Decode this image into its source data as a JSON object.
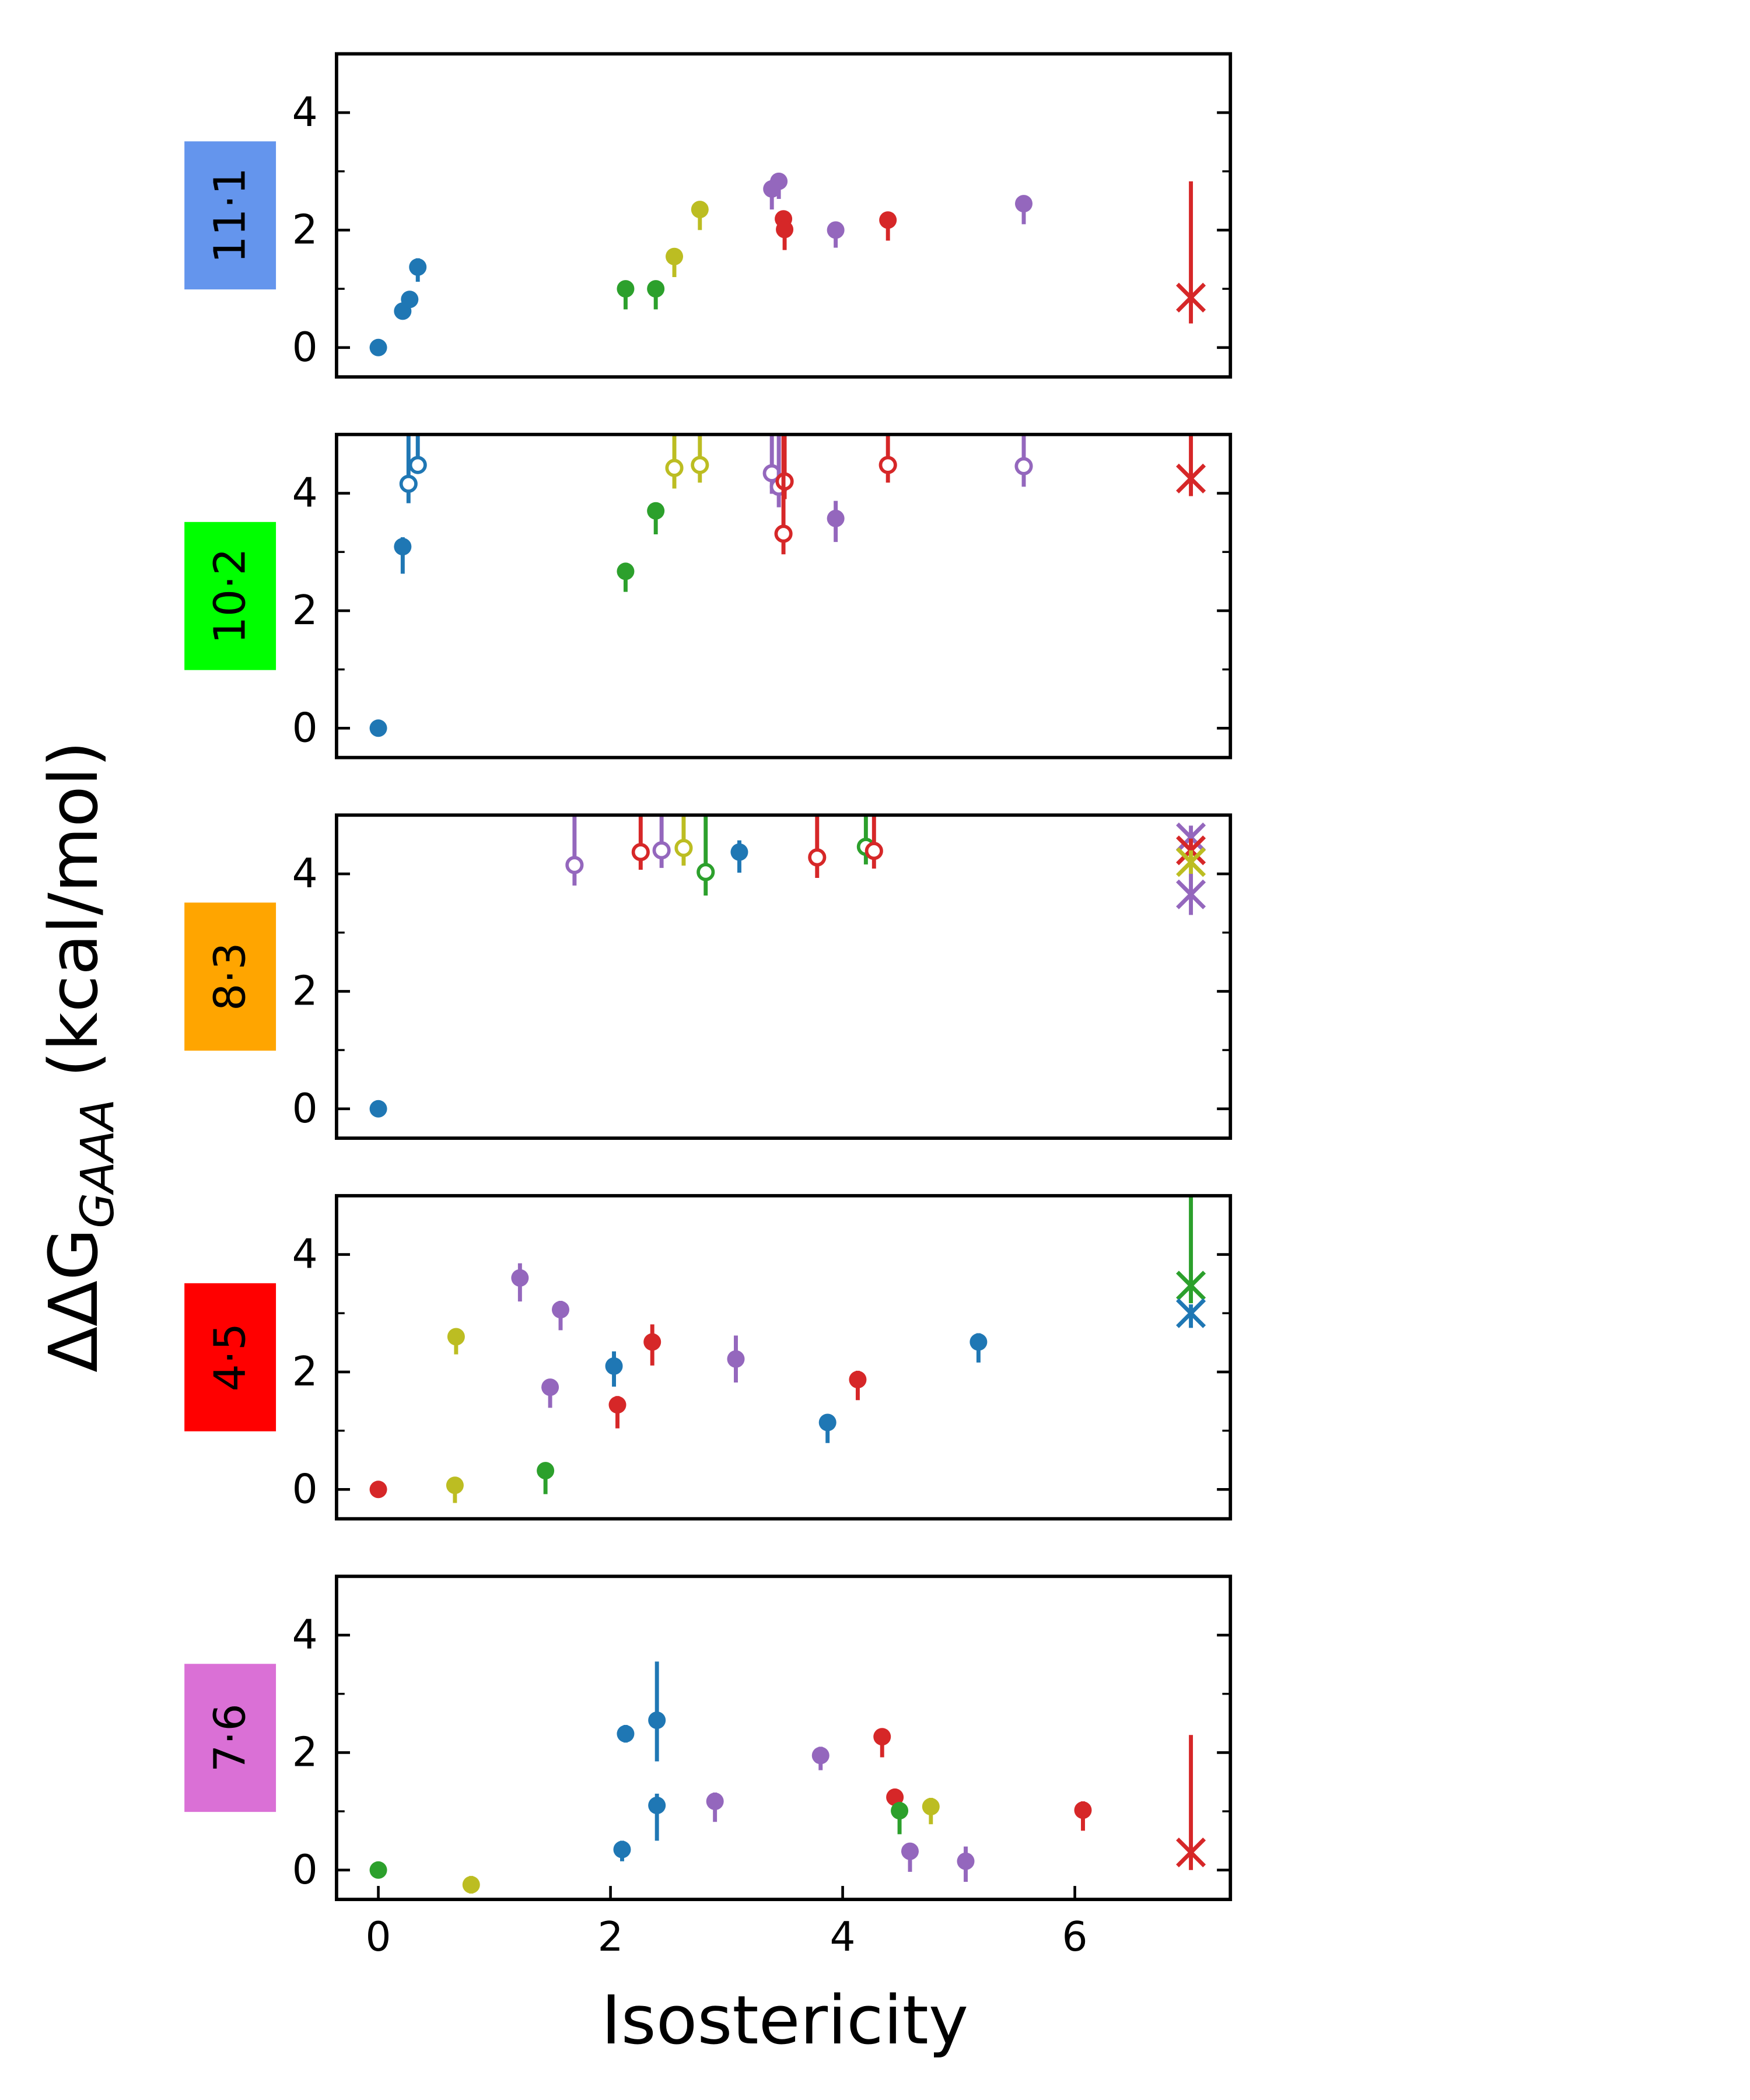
{
  "figure": {
    "xlabel": "Isostericity",
    "ylabel": "ΔΔG",
    "ylabel_subscript": "GAAA",
    "ylabel_unit": " (kcal/mol)"
  },
  "chart_data": [
    {
      "type": "scatter",
      "panel_label": "11·1",
      "panel_color": "#6495ed",
      "xlim": [
        -0.36,
        7.34
      ],
      "ylim": [
        -0.5,
        5
      ],
      "yticks": [
        0,
        2,
        4
      ],
      "yminor": [
        1,
        3
      ],
      "points": [
        {
          "x": 0,
          "y": 0,
          "err": [
            0.05,
            0.05
          ],
          "color": "#1f77b4",
          "marker": "o"
        },
        {
          "x": 0.21,
          "y": 0.62,
          "err": [
            0.1,
            0.1
          ],
          "color": "#1f77b4",
          "marker": "o"
        },
        {
          "x": 0.27,
          "y": 0.82,
          "err": [
            0.1,
            0.1
          ],
          "color": "#1f77b4",
          "marker": "o"
        },
        {
          "x": 0.34,
          "y": 1.37,
          "err": [
            0.25,
            0.15
          ],
          "color": "#1f77b4",
          "marker": "o"
        },
        {
          "x": 2.13,
          "y": 1.0,
          "err": [
            0.35,
            0.1
          ],
          "color": "#2ca02c",
          "marker": "o"
        },
        {
          "x": 2.39,
          "y": 1.0,
          "err": [
            0.35,
            0.1
          ],
          "color": "#2ca02c",
          "marker": "o"
        },
        {
          "x": 2.55,
          "y": 1.55,
          "err": [
            0.35,
            0.1
          ],
          "color": "#bcbd22",
          "marker": "o"
        },
        {
          "x": 2.77,
          "y": 2.35,
          "err": [
            0.35,
            0.1
          ],
          "color": "#bcbd22",
          "marker": "o"
        },
        {
          "x": 3.39,
          "y": 2.7,
          "err": [
            0.35,
            0.15
          ],
          "color": "#9467bd",
          "marker": "o"
        },
        {
          "x": 3.45,
          "y": 2.83,
          "err": [
            0.3,
            0.1
          ],
          "color": "#9467bd",
          "marker": "o"
        },
        {
          "x": 3.49,
          "y": 2.19,
          "err": [
            0.3,
            0.1
          ],
          "color": "#d62728",
          "marker": "o"
        },
        {
          "x": 3.5,
          "y": 2.01,
          "err": [
            0.35,
            0.1
          ],
          "color": "#d62728",
          "marker": "o"
        },
        {
          "x": 3.94,
          "y": 2.0,
          "err": [
            0.3,
            0.1
          ],
          "color": "#9467bd",
          "marker": "o"
        },
        {
          "x": 4.39,
          "y": 2.17,
          "err": [
            0.35,
            0.1
          ],
          "color": "#d62728",
          "marker": "o"
        },
        {
          "x": 5.56,
          "y": 2.45,
          "err": [
            0.35,
            0.1
          ],
          "color": "#9467bd",
          "marker": "o"
        },
        {
          "x": 7.0,
          "y": 0.85,
          "err": [
            0.44,
            1.98
          ],
          "color": "#d62728",
          "marker": "x"
        }
      ]
    },
    {
      "type": "scatter",
      "panel_label": "10·2",
      "panel_color": "#00ff00",
      "xlim": [
        -0.36,
        7.34
      ],
      "ylim": [
        -0.5,
        5
      ],
      "yticks": [
        0,
        2,
        4
      ],
      "yminor": [
        1,
        3
      ],
      "points": [
        {
          "x": 0,
          "y": 0,
          "err": [
            0.05,
            0.05
          ],
          "color": "#1f77b4",
          "marker": "o"
        },
        {
          "x": 0.21,
          "y": 3.09,
          "err": [
            0.46,
            0.16
          ],
          "color": "#1f77b4",
          "marker": "o"
        },
        {
          "x": 0.26,
          "y": 4.16,
          "err": [
            0.33,
            1
          ],
          "color": "#1f77b4",
          "marker": "open"
        },
        {
          "x": 0.34,
          "y": 4.48,
          "err": [
            0.1,
            1
          ],
          "color": "#1f77b4",
          "marker": "open"
        },
        {
          "x": 2.13,
          "y": 2.67,
          "err": [
            0.35,
            0.1
          ],
          "color": "#2ca02c",
          "marker": "o"
        },
        {
          "x": 2.39,
          "y": 3.7,
          "err": [
            0.4,
            0.1
          ],
          "color": "#2ca02c",
          "marker": "o"
        },
        {
          "x": 2.55,
          "y": 4.43,
          "err": [
            0.35,
            1
          ],
          "color": "#bcbd22",
          "marker": "open"
        },
        {
          "x": 2.77,
          "y": 4.48,
          "err": [
            0.3,
            1
          ],
          "color": "#bcbd22",
          "marker": "open"
        },
        {
          "x": 3.39,
          "y": 4.34,
          "err": [
            0.35,
            1
          ],
          "color": "#9467bd",
          "marker": "open"
        },
        {
          "x": 3.45,
          "y": 4.11,
          "err": [
            0.35,
            1
          ],
          "color": "#9467bd",
          "marker": "open"
        },
        {
          "x": 3.5,
          "y": 4.2,
          "err": [
            0.3,
            1
          ],
          "color": "#d62728",
          "marker": "open"
        },
        {
          "x": 3.49,
          "y": 3.31,
          "err": [
            0.35,
            1.7
          ],
          "color": "#d62728",
          "marker": "open"
        },
        {
          "x": 3.94,
          "y": 3.57,
          "err": [
            0.4,
            0.3
          ],
          "color": "#9467bd",
          "marker": "o"
        },
        {
          "x": 4.39,
          "y": 4.48,
          "err": [
            0.3,
            1
          ],
          "color": "#d62728",
          "marker": "open"
        },
        {
          "x": 5.56,
          "y": 4.46,
          "err": [
            0.35,
            1
          ],
          "color": "#9467bd",
          "marker": "open"
        },
        {
          "x": 7.0,
          "y": 4.25,
          "err": [
            0.3,
            1
          ],
          "color": "#d62728",
          "marker": "x"
        }
      ]
    },
    {
      "type": "scatter",
      "panel_label": "8·3",
      "panel_color": "#ffa500",
      "xlim": [
        -0.36,
        7.34
      ],
      "ylim": [
        -0.5,
        5
      ],
      "yticks": [
        0,
        2,
        4
      ],
      "yminor": [
        1,
        3
      ],
      "points": [
        {
          "x": 0,
          "y": 0,
          "err": [
            0.05,
            0.05
          ],
          "color": "#1f77b4",
          "marker": "o"
        },
        {
          "x": 1.69,
          "y": 4.15,
          "err": [
            0.35,
            1
          ],
          "color": "#9467bd",
          "marker": "open"
        },
        {
          "x": 2.26,
          "y": 4.37,
          "err": [
            0.3,
            1
          ],
          "color": "#d62728",
          "marker": "open"
        },
        {
          "x": 2.44,
          "y": 4.4,
          "err": [
            0.3,
            1
          ],
          "color": "#9467bd",
          "marker": "open"
        },
        {
          "x": 2.63,
          "y": 4.44,
          "err": [
            0.3,
            1
          ],
          "color": "#bcbd22",
          "marker": "open"
        },
        {
          "x": 2.82,
          "y": 4.03,
          "err": [
            0.4,
            1
          ],
          "color": "#2ca02c",
          "marker": "open"
        },
        {
          "x": 3.11,
          "y": 4.37,
          "err": [
            0.35,
            0.2
          ],
          "color": "#1f77b4",
          "marker": "o"
        },
        {
          "x": 3.78,
          "y": 4.28,
          "err": [
            0.35,
            1
          ],
          "color": "#d62728",
          "marker": "open"
        },
        {
          "x": 4.2,
          "y": 4.46,
          "err": [
            0.3,
            1
          ],
          "color": "#2ca02c",
          "marker": "open"
        },
        {
          "x": 4.27,
          "y": 4.39,
          "err": [
            0.3,
            1
          ],
          "color": "#d62728",
          "marker": "open"
        },
        {
          "x": 7.0,
          "y": 4.62,
          "err": [
            0.2,
            0.2
          ],
          "color": "#9467bd",
          "marker": "x"
        },
        {
          "x": 7.0,
          "y": 4.4,
          "err": [
            0.2,
            0.2
          ],
          "color": "#d62728",
          "marker": "x"
        },
        {
          "x": 7.0,
          "y": 4.2,
          "err": [
            0.2,
            0.2
          ],
          "color": "#bcbd22",
          "marker": "x"
        },
        {
          "x": 7.0,
          "y": 3.65,
          "err": [
            0.35,
            0.35
          ],
          "color": "#9467bd",
          "marker": "x"
        }
      ]
    },
    {
      "type": "scatter",
      "panel_label": "4·5",
      "panel_color": "#ff0000",
      "xlim": [
        -0.36,
        7.34
      ],
      "ylim": [
        -0.5,
        5
      ],
      "yticks": [
        0,
        2,
        4
      ],
      "yminor": [
        1,
        3
      ],
      "points": [
        {
          "x": 0,
          "y": 0,
          "err": [
            0.05,
            0.05
          ],
          "color": "#d62728",
          "marker": "o"
        },
        {
          "x": 0.66,
          "y": 0.07,
          "err": [
            0.3,
            0.1
          ],
          "color": "#bcbd22",
          "marker": "o"
        },
        {
          "x": 0.67,
          "y": 2.6,
          "err": [
            0.3,
            0.1
          ],
          "color": "#bcbd22",
          "marker": "o"
        },
        {
          "x": 1.22,
          "y": 3.6,
          "err": [
            0.4,
            0.25
          ],
          "color": "#9467bd",
          "marker": "o"
        },
        {
          "x": 1.44,
          "y": 0.32,
          "err": [
            0.4,
            0.1
          ],
          "color": "#2ca02c",
          "marker": "o"
        },
        {
          "x": 1.48,
          "y": 1.74,
          "err": [
            0.35,
            0.1
          ],
          "color": "#9467bd",
          "marker": "o"
        },
        {
          "x": 1.57,
          "y": 3.06,
          "err": [
            0.35,
            0.15
          ],
          "color": "#9467bd",
          "marker": "o"
        },
        {
          "x": 2.03,
          "y": 2.1,
          "err": [
            0.35,
            0.25
          ],
          "color": "#1f77b4",
          "marker": "o"
        },
        {
          "x": 2.06,
          "y": 1.44,
          "err": [
            0.4,
            0.15
          ],
          "color": "#d62728",
          "marker": "o"
        },
        {
          "x": 2.36,
          "y": 2.51,
          "err": [
            0.4,
            0.3
          ],
          "color": "#d62728",
          "marker": "o"
        },
        {
          "x": 3.08,
          "y": 2.22,
          "err": [
            0.4,
            0.4
          ],
          "color": "#9467bd",
          "marker": "o"
        },
        {
          "x": 3.87,
          "y": 1.14,
          "err": [
            0.35,
            0.1
          ],
          "color": "#1f77b4",
          "marker": "o"
        },
        {
          "x": 4.13,
          "y": 1.87,
          "err": [
            0.35,
            0.15
          ],
          "color": "#d62728",
          "marker": "o"
        },
        {
          "x": 5.17,
          "y": 2.51,
          "err": [
            0.35,
            0.15
          ],
          "color": "#1f77b4",
          "marker": "o"
        },
        {
          "x": 7.0,
          "y": 3.47,
          "err": [
            0.3,
            1.6
          ],
          "color": "#2ca02c",
          "marker": "x"
        },
        {
          "x": 7.0,
          "y": 3.0,
          "err": [
            0.25,
            0.15
          ],
          "color": "#1f77b4",
          "marker": "x"
        }
      ]
    },
    {
      "type": "scatter",
      "panel_label": "7·6",
      "panel_color": "#da70d6",
      "xlim": [
        -0.36,
        7.34
      ],
      "ylim": [
        -0.5,
        5
      ],
      "yticks": [
        0,
        2,
        4
      ],
      "yminor": [
        1,
        3
      ],
      "xticks": [
        0,
        2,
        4,
        6
      ],
      "points": [
        {
          "x": 0,
          "y": 0,
          "err": [
            0.05,
            0.05
          ],
          "color": "#2ca02c",
          "marker": "o"
        },
        {
          "x": 0.8,
          "y": -0.25,
          "err": [
            0.15,
            0.15
          ],
          "color": "#bcbd22",
          "marker": "o"
        },
        {
          "x": 2.1,
          "y": 0.35,
          "err": [
            0.2,
            0.15
          ],
          "color": "#1f77b4",
          "marker": "o"
        },
        {
          "x": 2.13,
          "y": 2.32,
          "err": [
            0.15,
            0.15
          ],
          "color": "#1f77b4",
          "marker": "o"
        },
        {
          "x": 2.4,
          "y": 2.55,
          "err": [
            0.7,
            1.0
          ],
          "color": "#1f77b4",
          "marker": "o"
        },
        {
          "x": 2.4,
          "y": 1.1,
          "err": [
            0.6,
            0.2
          ],
          "color": "#1f77b4",
          "marker": "o"
        },
        {
          "x": 2.9,
          "y": 1.17,
          "err": [
            0.35,
            0.15
          ],
          "color": "#9467bd",
          "marker": "o"
        },
        {
          "x": 3.81,
          "y": 1.95,
          "err": [
            0.25,
            0.15
          ],
          "color": "#9467bd",
          "marker": "o"
        },
        {
          "x": 4.34,
          "y": 2.27,
          "err": [
            0.35,
            0.1
          ],
          "color": "#d62728",
          "marker": "o"
        },
        {
          "x": 4.45,
          "y": 1.24,
          "err": [
            0.2,
            0.1
          ],
          "color": "#d62728",
          "marker": "o"
        },
        {
          "x": 4.49,
          "y": 1.01,
          "err": [
            0.4,
            0.15
          ],
          "color": "#2ca02c",
          "marker": "o"
        },
        {
          "x": 4.76,
          "y": 1.08,
          "err": [
            0.3,
            0.15
          ],
          "color": "#bcbd22",
          "marker": "o"
        },
        {
          "x": 4.58,
          "y": 0.32,
          "err": [
            0.35,
            0.1
          ],
          "color": "#9467bd",
          "marker": "o"
        },
        {
          "x": 5.06,
          "y": 0.15,
          "err": [
            0.35,
            0.25
          ],
          "color": "#9467bd",
          "marker": "o"
        },
        {
          "x": 6.07,
          "y": 1.02,
          "err": [
            0.35,
            0.15
          ],
          "color": "#d62728",
          "marker": "o"
        },
        {
          "x": 7.0,
          "y": 0.3,
          "err": [
            0.3,
            2.0
          ],
          "color": "#d62728",
          "marker": "x"
        }
      ]
    }
  ]
}
